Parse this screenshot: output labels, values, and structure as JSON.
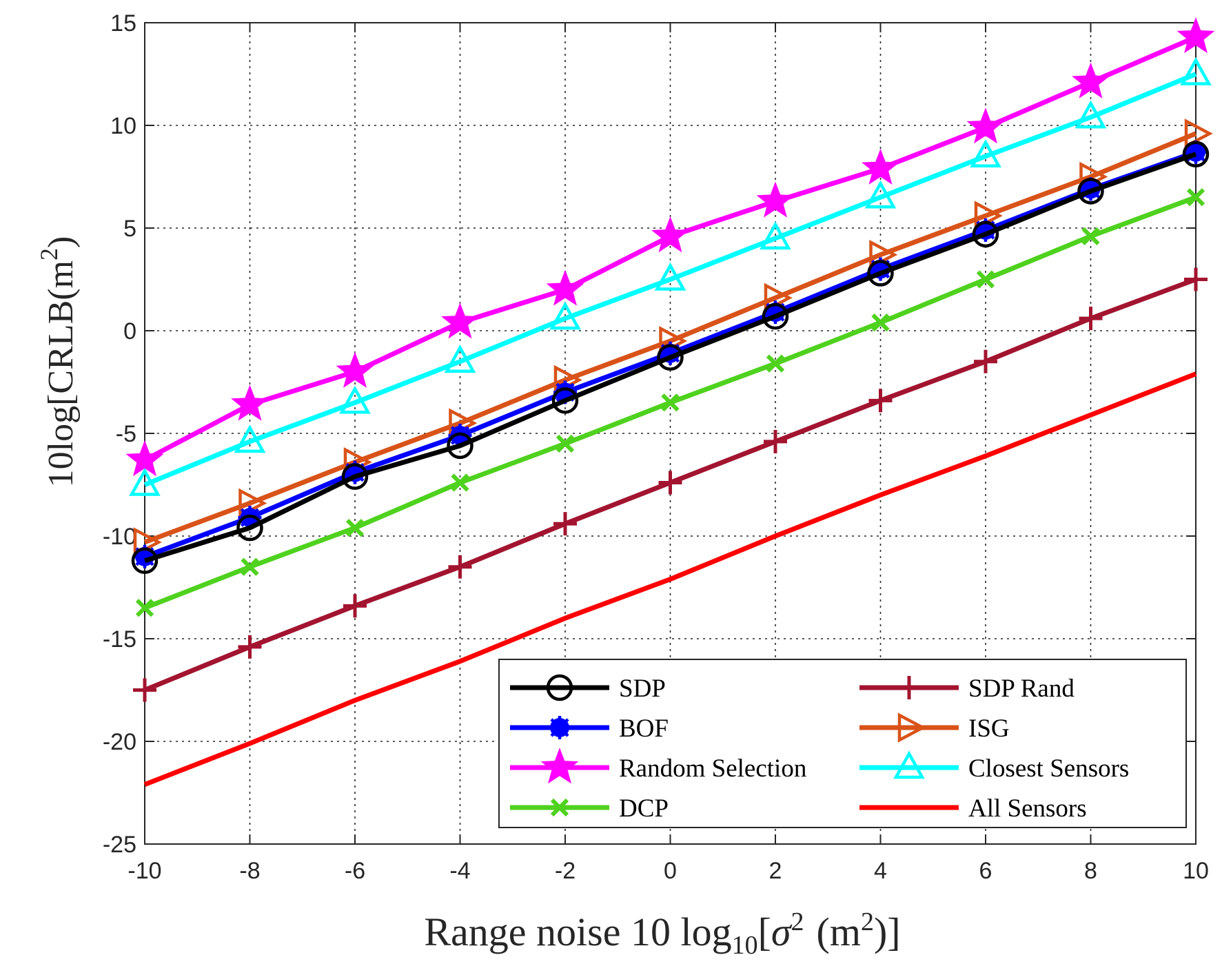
{
  "chart_data": {
    "type": "line",
    "title": "",
    "xlabel": {
      "prefix": "Range noise 10 log",
      "sub": "10",
      "open": "[",
      "sigma": "σ",
      "sup": "2",
      "unit": "(m",
      "unit_sup": "2",
      "close": ")]"
    },
    "ylabel": {
      "text": "10log[CRLB(m",
      "sup": "2",
      "close": ")"
    },
    "xlim": [
      -10,
      10
    ],
    "ylim": [
      -25,
      15
    ],
    "xticks": [
      "-10",
      "-8",
      "-6",
      "-4",
      "-2",
      "0",
      "2",
      "4",
      "6",
      "8",
      "10"
    ],
    "yticks": [
      "-25",
      "-20",
      "-15",
      "-10",
      "-5",
      "0",
      "5",
      "10",
      "15"
    ],
    "grid": true,
    "legend_position": "bottom-right",
    "x": [
      -10,
      -8,
      -6,
      -4,
      -2,
      0,
      2,
      4,
      6,
      8,
      10
    ],
    "series": [
      {
        "name": "SDP",
        "color": "#000000",
        "marker": "circle",
        "values": [
          -11.2,
          -9.6,
          -7.1,
          -5.6,
          -3.4,
          -1.3,
          0.7,
          2.8,
          4.7,
          6.8,
          8.6
        ]
      },
      {
        "name": "BOF",
        "color": "#0000ff",
        "marker": "asterisk",
        "values": [
          -11.0,
          -9.1,
          -6.9,
          -5.1,
          -3.0,
          -1.1,
          0.9,
          3.0,
          4.9,
          6.9,
          8.7
        ]
      },
      {
        "name": "Random Selection",
        "color": "#ff00ff",
        "marker": "star",
        "values": [
          -6.3,
          -3.6,
          -2.0,
          0.4,
          2.0,
          4.6,
          6.3,
          7.9,
          9.9,
          12.1,
          14.3
        ]
      },
      {
        "name": "DCP",
        "color": "#4fd21e",
        "marker": "x",
        "values": [
          -13.5,
          -11.5,
          -9.6,
          -7.4,
          -5.5,
          -3.5,
          -1.6,
          0.4,
          2.5,
          4.6,
          6.5
        ]
      },
      {
        "name": "SDP Rand",
        "color": "#a2142f",
        "marker": "plus",
        "values": [
          -17.5,
          -15.4,
          -13.4,
          -11.5,
          -9.4,
          -7.4,
          -5.4,
          -3.4,
          -1.5,
          0.6,
          2.5
        ]
      },
      {
        "name": "ISG",
        "color": "#d95319",
        "marker": "triangle-right",
        "values": [
          -10.3,
          -8.4,
          -6.4,
          -4.5,
          -2.4,
          -0.5,
          1.6,
          3.7,
          5.6,
          7.5,
          9.6
        ]
      },
      {
        "name": "Closest Sensors",
        "color": "#00ffff",
        "marker": "triangle-up",
        "values": [
          -7.5,
          -5.4,
          -3.5,
          -1.5,
          0.6,
          2.5,
          4.5,
          6.5,
          8.5,
          10.4,
          12.5
        ]
      },
      {
        "name": "All Sensors",
        "color": "#ff0000",
        "marker": "none",
        "values": [
          -22.1,
          -20.1,
          -18.0,
          -16.1,
          -14.0,
          -12.1,
          -10.0,
          -8.0,
          -6.1,
          -4.1,
          -2.1
        ]
      }
    ]
  }
}
